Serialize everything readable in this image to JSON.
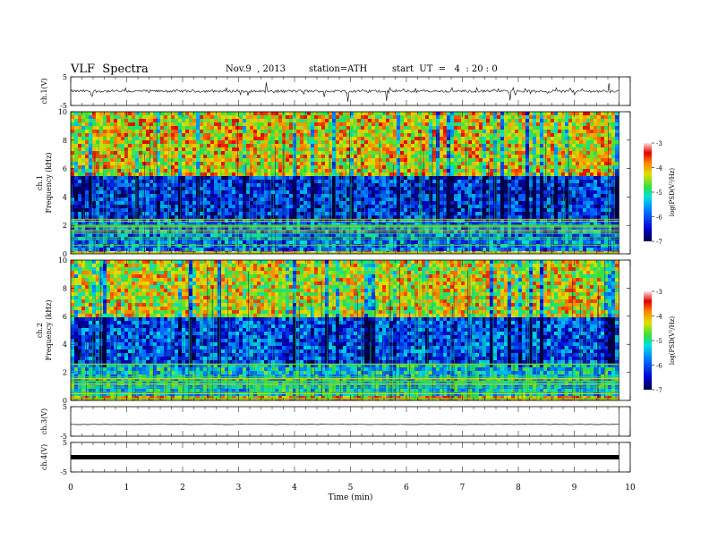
{
  "header": {
    "title": "VLF  Spectra",
    "date": "Nov.9  , 2013",
    "station": "station=ATH",
    "start": "start  UT  =   4  : 20 : 0"
  },
  "chart_data": [
    {
      "type": "line",
      "panel": "ch1-waveform",
      "ylabel": "ch.1(V)",
      "yticks": [
        "5",
        "-5"
      ],
      "ylim": [
        -5,
        5
      ],
      "x_range": [
        0,
        9.8
      ],
      "baseline": 0,
      "description_values": {
        "typical_amplitude": 1,
        "spike_amplitude": 3
      }
    },
    {
      "type": "heatmap",
      "panel": "ch1-spectrogram",
      "ylabel": [
        "ch.1",
        "Frequency  (kHz)"
      ],
      "yticks": [
        "0",
        "2",
        "4",
        "6",
        "8",
        "10"
      ],
      "ylim": [
        0,
        10
      ],
      "x_range": [
        0,
        9.8
      ],
      "colorbar": {
        "label": "log(PSD(V²/Hz)",
        "ticks": [
          "-3",
          "-4",
          "-5",
          "-6",
          "-7"
        ],
        "range": [
          -7,
          -3
        ]
      },
      "bands_khz": [
        {
          "from": 0,
          "to": 0.4,
          "level": -3.6
        },
        {
          "from": 0.4,
          "to": 2.6,
          "level": -5.8
        },
        {
          "from": 2.6,
          "to": 5.5,
          "level": -6.2
        },
        {
          "from": 5.5,
          "to": 10,
          "level": -4.2
        }
      ]
    },
    {
      "type": "heatmap",
      "panel": "ch2-spectrogram",
      "ylabel": [
        "ch.2",
        "Frequency  (kHz)"
      ],
      "yticks": [
        "0",
        "2",
        "4",
        "6",
        "8",
        "10"
      ],
      "ylim": [
        0,
        10
      ],
      "x_range": [
        0,
        9.8
      ],
      "colorbar": {
        "label": "log(PSD(V²/Hz)",
        "ticks": [
          "-3",
          "-4",
          "-5",
          "-6",
          "-7"
        ],
        "range": [
          -7,
          -3
        ]
      },
      "bands_khz": [
        {
          "from": 0,
          "to": 0.4,
          "level": -4.0
        },
        {
          "from": 0.4,
          "to": 2.8,
          "level": -5.3
        },
        {
          "from": 2.8,
          "to": 6.0,
          "level": -6.0
        },
        {
          "from": 6.0,
          "to": 10,
          "level": -4.3
        }
      ]
    },
    {
      "type": "line",
      "panel": "ch3-waveform",
      "ylabel": "ch.3(V)",
      "yticks": [
        "5",
        "-5"
      ],
      "ylim": [
        -5,
        5
      ],
      "x_range": [
        0,
        9.8
      ],
      "baseline": -1
    },
    {
      "type": "line",
      "panel": "ch4-waveform",
      "ylabel": "ch.4(V)",
      "yticks": [
        "5",
        "-5"
      ],
      "ylim": [
        -5,
        5
      ],
      "x_range": [
        0,
        9.8
      ],
      "baseline": 0
    }
  ],
  "xaxis": {
    "label": "Time  (min)",
    "ticks": [
      "0",
      "1",
      "2",
      "3",
      "4",
      "5",
      "6",
      "7",
      "8",
      "9",
      "10"
    ],
    "range": [
      0,
      10
    ]
  }
}
